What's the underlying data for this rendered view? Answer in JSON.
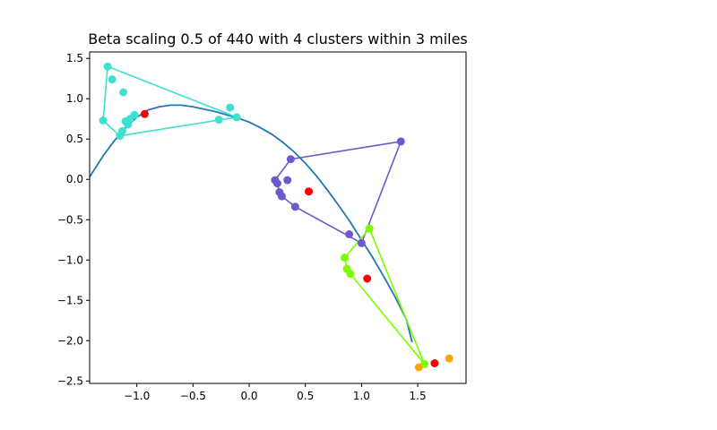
{
  "chart_data": {
    "type": "scatter",
    "title": "Beta scaling 0.5 of 440 with 4 clusters within 3 miles",
    "xlabel": "",
    "ylabel": "",
    "xlim": [
      -1.42,
      1.93
    ],
    "ylim": [
      -2.53,
      1.58
    ],
    "xticks": [
      -1.0,
      -0.5,
      0.0,
      0.5,
      1.0,
      1.5
    ],
    "xtick_labels": [
      "−1.0",
      "−0.5",
      "0.0",
      "0.5",
      "1.0",
      "1.5"
    ],
    "yticks": [
      1.5,
      1.0,
      0.5,
      0.0,
      -0.5,
      -1.0,
      -1.5,
      -2.0,
      -2.5
    ],
    "ytick_labels": [
      "1.5",
      "1.0",
      "0.5",
      "0.0",
      "−0.5",
      "−1.0",
      "−1.5",
      "−2.0",
      "−2.5"
    ],
    "grid": false,
    "curve": {
      "color": "#1f77b4",
      "points": [
        [
          -1.42,
          0.03
        ],
        [
          -1.3,
          0.29
        ],
        [
          -1.2,
          0.48
        ],
        [
          -1.1,
          0.64
        ],
        [
          -1.0,
          0.77
        ],
        [
          -0.9,
          0.86
        ],
        [
          -0.8,
          0.9
        ],
        [
          -0.7,
          0.92
        ],
        [
          -0.6,
          0.92
        ],
        [
          -0.5,
          0.9
        ],
        [
          -0.4,
          0.87
        ],
        [
          -0.3,
          0.84
        ],
        [
          -0.2,
          0.8
        ],
        [
          -0.1,
          0.76
        ],
        [
          0.0,
          0.71
        ],
        [
          0.1,
          0.64
        ],
        [
          0.2,
          0.56
        ],
        [
          0.3,
          0.46
        ],
        [
          0.4,
          0.34
        ],
        [
          0.5,
          0.2
        ],
        [
          0.6,
          0.04
        ],
        [
          0.7,
          -0.14
        ],
        [
          0.8,
          -0.33
        ],
        [
          0.9,
          -0.53
        ],
        [
          1.0,
          -0.75
        ],
        [
          1.1,
          -0.97
        ],
        [
          1.2,
          -1.21
        ],
        [
          1.3,
          -1.46
        ],
        [
          1.4,
          -1.74
        ],
        [
          1.45,
          -2.02
        ]
      ]
    },
    "series": [
      {
        "color": "#40e0d0",
        "points": [
          [
            -1.26,
            1.4
          ],
          [
            -1.22,
            1.24
          ],
          [
            -1.12,
            1.08
          ],
          [
            -1.3,
            0.73
          ],
          [
            -1.15,
            0.54
          ],
          [
            -1.13,
            0.6
          ],
          [
            -1.1,
            0.72
          ],
          [
            -1.08,
            0.68
          ],
          [
            -1.06,
            0.75
          ],
          [
            -1.02,
            0.8
          ],
          [
            -0.27,
            0.74
          ],
          [
            -0.17,
            0.89
          ],
          [
            -0.11,
            0.77
          ]
        ],
        "hull": [
          [
            -1.26,
            1.4
          ],
          [
            -0.11,
            0.77
          ],
          [
            -1.15,
            0.54
          ],
          [
            -1.3,
            0.73
          ],
          [
            -1.26,
            1.4
          ]
        ]
      },
      {
        "color": "#6a5acd",
        "points": [
          [
            1.35,
            0.47
          ],
          [
            0.37,
            0.25
          ],
          [
            0.23,
            -0.01
          ],
          [
            0.25,
            -0.05
          ],
          [
            0.34,
            -0.01
          ],
          [
            0.27,
            -0.16
          ],
          [
            0.29,
            -0.21
          ],
          [
            0.41,
            -0.34
          ],
          [
            0.89,
            -0.68
          ],
          [
            1.0,
            -0.79
          ]
        ],
        "hull": [
          [
            1.35,
            0.47
          ],
          [
            0.37,
            0.25
          ],
          [
            0.23,
            -0.01
          ],
          [
            0.29,
            -0.21
          ],
          [
            0.41,
            -0.34
          ],
          [
            1.0,
            -0.79
          ],
          [
            1.35,
            0.47
          ]
        ]
      },
      {
        "color": "#7cfc00",
        "points": [
          [
            1.07,
            -0.61
          ],
          [
            0.85,
            -0.97
          ],
          [
            0.87,
            -1.11
          ],
          [
            0.9,
            -1.17
          ],
          [
            1.56,
            -2.29
          ]
        ],
        "hull": [
          [
            1.07,
            -0.61
          ],
          [
            0.85,
            -0.97
          ],
          [
            0.87,
            -1.11
          ],
          [
            0.9,
            -1.17
          ],
          [
            1.56,
            -2.29
          ],
          [
            1.07,
            -0.61
          ]
        ]
      },
      {
        "color": "#ffa500",
        "points": [
          [
            1.51,
            -2.33
          ],
          [
            1.78,
            -2.22
          ]
        ],
        "hull": []
      }
    ],
    "centroids": {
      "color": "#ff0000",
      "points": [
        [
          -0.93,
          0.81
        ],
        [
          0.53,
          -0.15
        ],
        [
          1.05,
          -1.23
        ],
        [
          1.65,
          -2.28
        ]
      ]
    }
  }
}
